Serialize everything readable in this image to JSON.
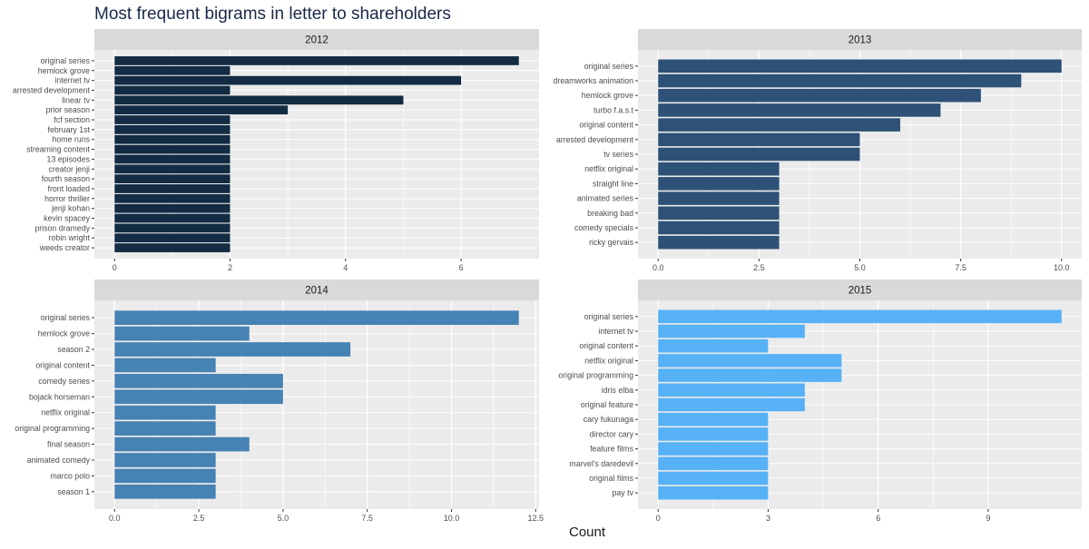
{
  "title": "Most frequent bigrams in letter to shareholders",
  "xlabel": "Count",
  "colors": {
    "panel_bg": "#EBEBEB",
    "strip_bg": "#D9D9D9",
    "grid": "#FFFFFF",
    "text": "#4D4D4D",
    "title": "#1A2A4A",
    "bar_2012": "#132B43",
    "bar_2013": "#2D5177",
    "bar_2014": "#4682B4",
    "bar_2015": "#56B1F7"
  },
  "chart_data": [
    {
      "type": "bar",
      "orientation": "horizontal",
      "facet": "2012",
      "categories": [
        "original series",
        "hemlock grove",
        "internet tv",
        "arrested development",
        "linear tv",
        "prior season",
        "fcf section",
        "february 1st",
        "home runs",
        "streaming content",
        "13 episodes",
        "creator jenji",
        "fourth season",
        "front loaded",
        "horror thriller",
        "jenji kohan",
        "kevin spacey",
        "prison dramedy",
        "robin wright",
        "weeds creator"
      ],
      "values": [
        7,
        2,
        6,
        2,
        5,
        3,
        2,
        2,
        2,
        2,
        2,
        2,
        2,
        2,
        2,
        2,
        2,
        2,
        2,
        2
      ],
      "xticks": [
        0,
        2,
        4,
        6
      ],
      "xtick_labels": [
        "0",
        "2",
        "4",
        "6"
      ],
      "xlim": [
        -0.35,
        7.35
      ],
      "color": "#132B43"
    },
    {
      "type": "bar",
      "orientation": "horizontal",
      "facet": "2013",
      "categories": [
        "original series",
        "dreamworks animation",
        "hemlock grove",
        "turbo f.a.s.t",
        "original content",
        "arrested development",
        "tv series",
        "netflix original",
        "straight line",
        "animated series",
        "breaking bad",
        "comedy specials",
        "ricky gervais"
      ],
      "values": [
        10,
        9,
        8,
        7,
        6,
        5,
        5,
        3,
        3,
        3,
        3,
        3,
        3
      ],
      "xticks": [
        0,
        2.5,
        5,
        7.5,
        10
      ],
      "xtick_labels": [
        "0.0",
        "2.5",
        "5.0",
        "7.5",
        "10.0"
      ],
      "xlim": [
        -0.5,
        10.5
      ],
      "color": "#2D5177"
    },
    {
      "type": "bar",
      "orientation": "horizontal",
      "facet": "2014",
      "categories": [
        "original series",
        "hemlock grove",
        "season 2",
        "original content",
        "comedy series",
        "bojack horseman",
        "netflix original",
        "original programming",
        "final season",
        "animated comedy",
        "marco polo",
        "season 1"
      ],
      "values": [
        12,
        4,
        7,
        3,
        5,
        5,
        3,
        3,
        4,
        3,
        3,
        3
      ],
      "xticks": [
        0,
        2.5,
        5,
        7.5,
        10,
        12.5
      ],
      "xtick_labels": [
        "0.0",
        "2.5",
        "5.0",
        "7.5",
        "10.0",
        "12.5"
      ],
      "xlim": [
        -0.6,
        12.6
      ],
      "color": "#4682B4"
    },
    {
      "type": "bar",
      "orientation": "horizontal",
      "facet": "2015",
      "categories": [
        "original series",
        "internet tv",
        "original content",
        "netflix original",
        "original programming",
        "idris elba",
        "original feature",
        "cary fukunaga",
        "director cary",
        "feature films",
        "marvel's daredevil",
        "original films",
        "pay tv"
      ],
      "values": [
        11,
        4,
        3,
        5,
        5,
        4,
        4,
        3,
        3,
        3,
        3,
        3,
        3
      ],
      "xticks": [
        0,
        3,
        6,
        9
      ],
      "xtick_labels": [
        "0",
        "3",
        "6",
        "9"
      ],
      "xlim": [
        -0.55,
        11.55
      ],
      "color": "#56B1F7"
    }
  ]
}
